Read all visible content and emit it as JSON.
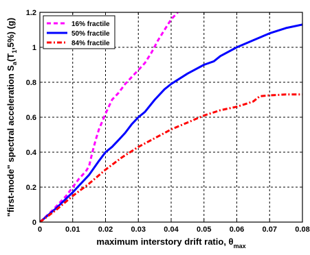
{
  "chart_data": {
    "type": "line",
    "title": "",
    "xlabel": {
      "main": "maximum interstory drift ratio, θ",
      "sub": "max"
    },
    "ylabel": {
      "part1": "\"first-mode\" spectral acceleration S",
      "sub1": "a",
      "part2": "(T",
      "sub2": "1",
      "part3": ",5%) (g)"
    },
    "xlim": [
      0,
      0.08
    ],
    "ylim": [
      0,
      1.2
    ],
    "xticks": [
      0,
      0.01,
      0.02,
      0.03,
      0.04,
      0.05,
      0.06,
      0.07,
      0.08
    ],
    "xticklabels": [
      "0",
      "0.01",
      "0.02",
      "0.03",
      "0.04",
      "0.05",
      "0.06",
      "0.07",
      "0.08"
    ],
    "yticks": [
      0,
      0.2,
      0.4,
      0.6,
      0.8,
      1.0,
      1.2
    ],
    "yticklabels": [
      "0",
      "0.2",
      "0.4",
      "0.6",
      "0.8",
      "1",
      "1.2"
    ],
    "grid": true,
    "legend_position": "top-left",
    "series": [
      {
        "name": "16% fractile",
        "color": "#ff00ff",
        "style": "dashed",
        "points": [
          [
            0,
            0
          ],
          [
            0.002,
            0.035
          ],
          [
            0.004,
            0.07
          ],
          [
            0.006,
            0.11
          ],
          [
            0.008,
            0.15
          ],
          [
            0.01,
            0.2
          ],
          [
            0.012,
            0.25
          ],
          [
            0.014,
            0.29
          ],
          [
            0.015,
            0.32
          ],
          [
            0.016,
            0.4
          ],
          [
            0.017,
            0.47
          ],
          [
            0.018,
            0.53
          ],
          [
            0.02,
            0.62
          ],
          [
            0.022,
            0.7
          ],
          [
            0.024,
            0.74
          ],
          [
            0.026,
            0.79
          ],
          [
            0.028,
            0.83
          ],
          [
            0.03,
            0.87
          ],
          [
            0.032,
            0.91
          ],
          [
            0.034,
            0.97
          ],
          [
            0.036,
            1.04
          ],
          [
            0.038,
            1.1
          ],
          [
            0.04,
            1.16
          ],
          [
            0.042,
            1.2
          ]
        ]
      },
      {
        "name": "50% fractile",
        "color": "#0000ff",
        "style": "solid",
        "points": [
          [
            0,
            0
          ],
          [
            0.005,
            0.08
          ],
          [
            0.01,
            0.17
          ],
          [
            0.015,
            0.27
          ],
          [
            0.018,
            0.35
          ],
          [
            0.02,
            0.4
          ],
          [
            0.022,
            0.43
          ],
          [
            0.024,
            0.47
          ],
          [
            0.026,
            0.51
          ],
          [
            0.028,
            0.56
          ],
          [
            0.03,
            0.6
          ],
          [
            0.032,
            0.63
          ],
          [
            0.035,
            0.7
          ],
          [
            0.038,
            0.76
          ],
          [
            0.04,
            0.79
          ],
          [
            0.045,
            0.85
          ],
          [
            0.05,
            0.9
          ],
          [
            0.053,
            0.92
          ],
          [
            0.055,
            0.95
          ],
          [
            0.06,
            1.0
          ],
          [
            0.065,
            1.04
          ],
          [
            0.07,
            1.08
          ],
          [
            0.075,
            1.11
          ],
          [
            0.08,
            1.13
          ]
        ]
      },
      {
        "name": "84% fractile",
        "color": "#ff0000",
        "style": "dashdot",
        "points": [
          [
            0,
            0
          ],
          [
            0.005,
            0.07
          ],
          [
            0.01,
            0.15
          ],
          [
            0.015,
            0.22
          ],
          [
            0.02,
            0.3
          ],
          [
            0.025,
            0.37
          ],
          [
            0.03,
            0.43
          ],
          [
            0.035,
            0.48
          ],
          [
            0.04,
            0.53
          ],
          [
            0.045,
            0.57
          ],
          [
            0.05,
            0.61
          ],
          [
            0.055,
            0.64
          ],
          [
            0.06,
            0.66
          ],
          [
            0.065,
            0.69
          ],
          [
            0.067,
            0.72
          ],
          [
            0.07,
            0.725
          ],
          [
            0.075,
            0.73
          ],
          [
            0.08,
            0.73
          ]
        ]
      }
    ]
  }
}
